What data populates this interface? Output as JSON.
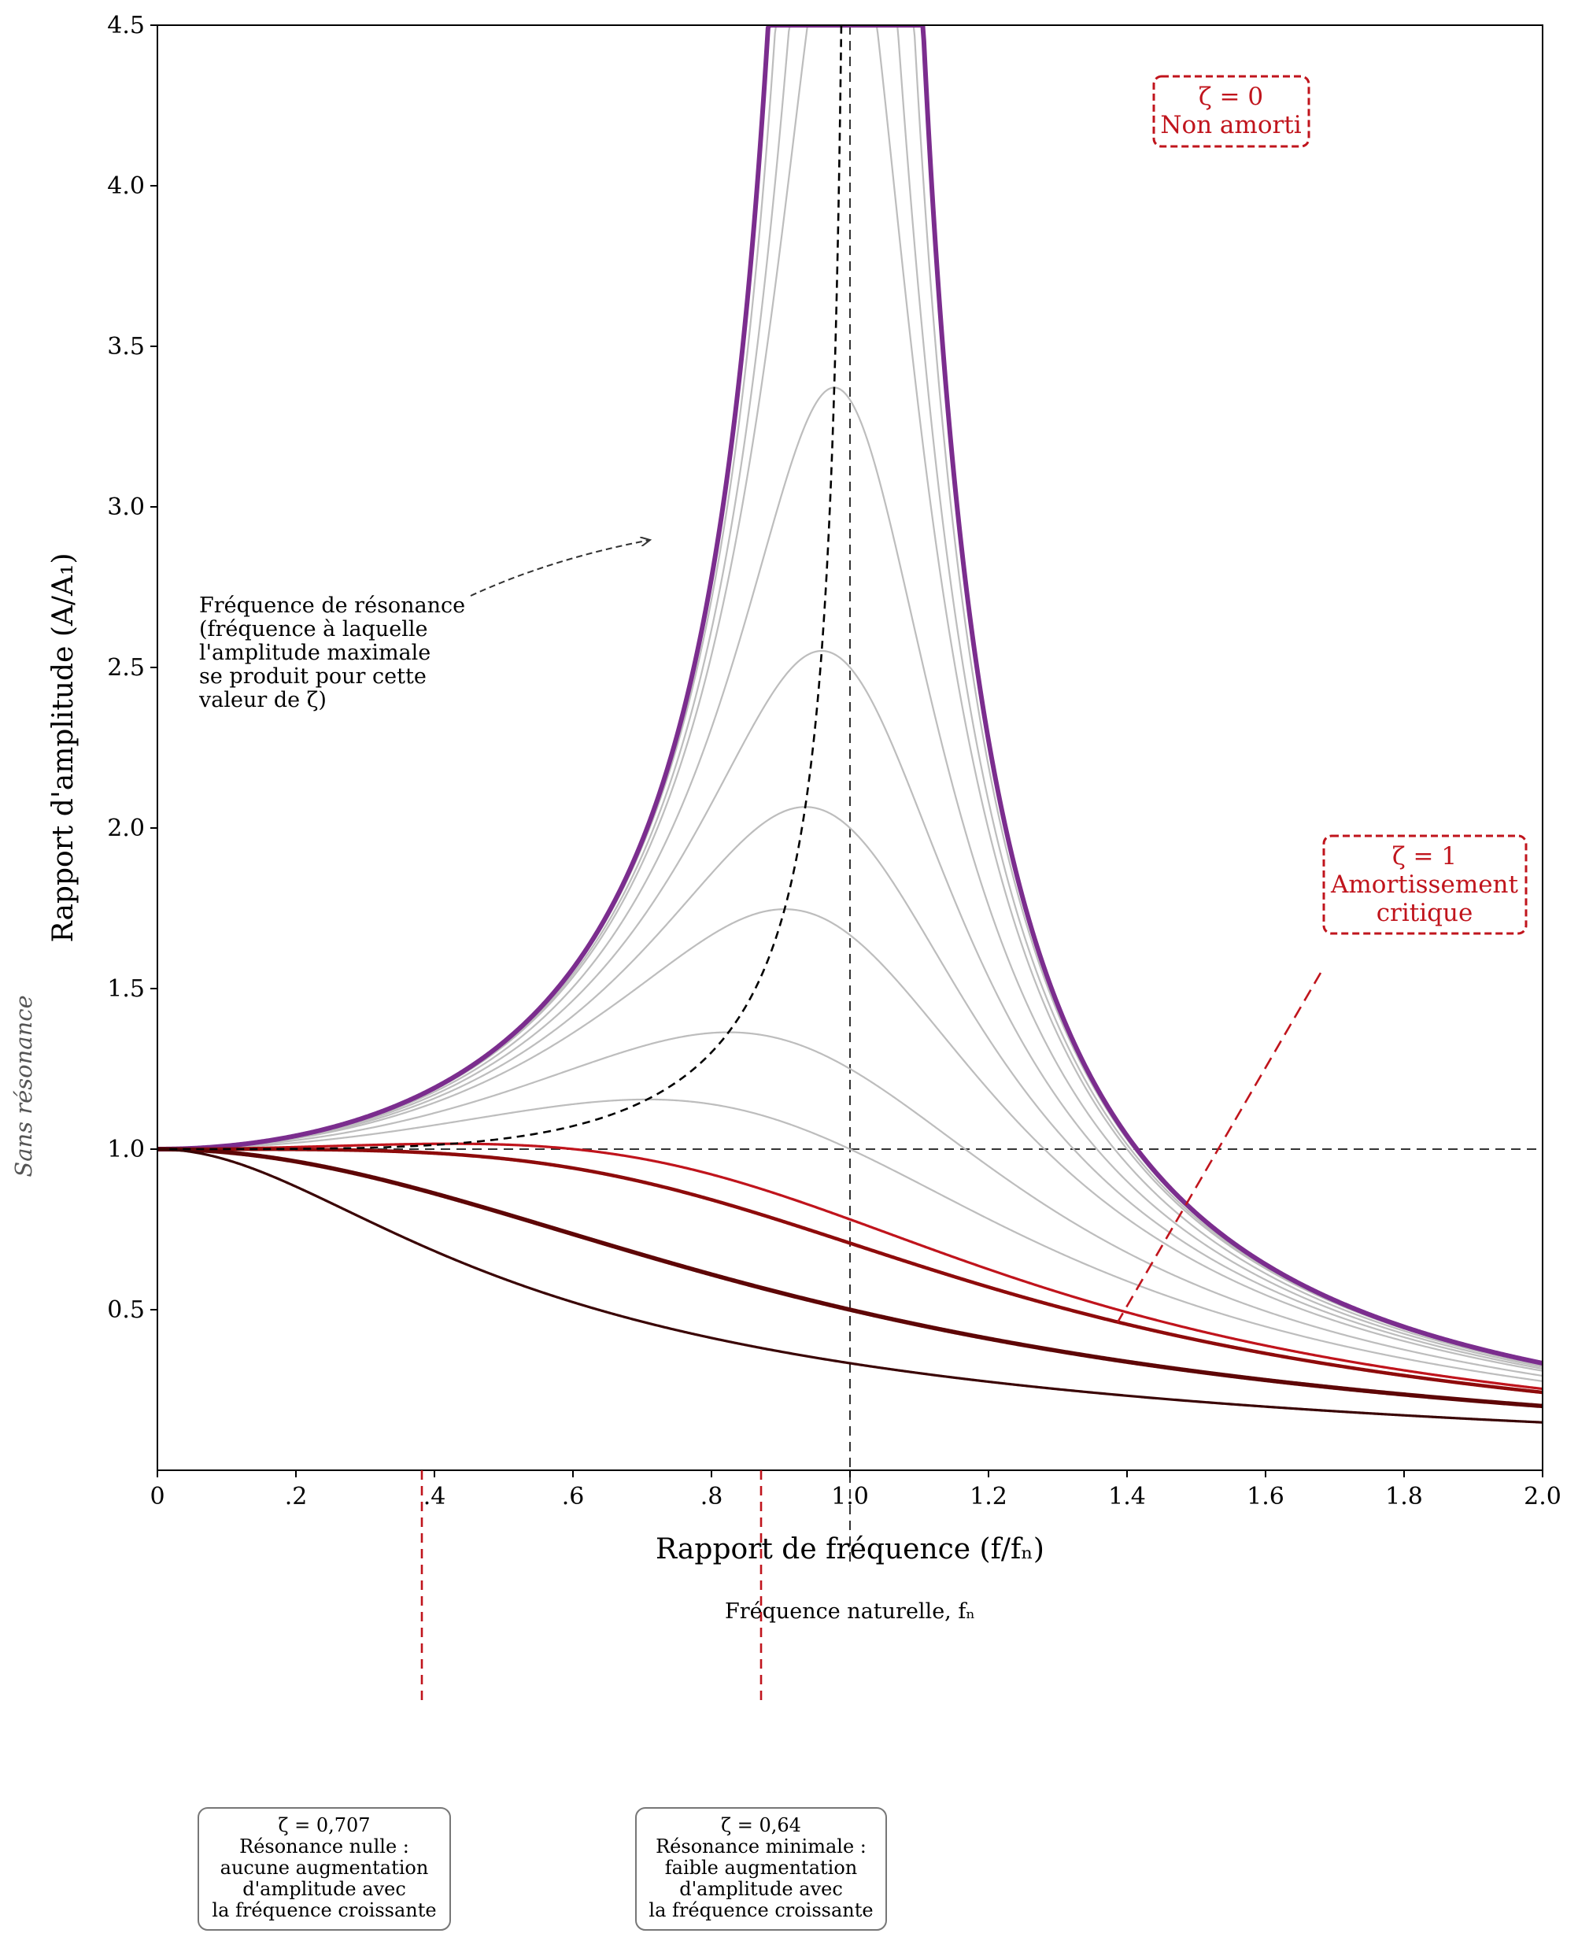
{
  "chart_data": {
    "type": "line",
    "title": "",
    "xlabel": "Rapport de fréquence (f/fₙ)",
    "ylabel": "Rapport d'amplitude (A/A₁)",
    "xlim": [
      0,
      2.0
    ],
    "ylim": [
      0,
      4.5
    ],
    "x_ticks": [
      {
        "value": 0,
        "label": "0"
      },
      {
        "value": 0.2,
        "label": ".2"
      },
      {
        "value": 0.4,
        "label": ".4"
      },
      {
        "value": 0.6,
        "label": ".6"
      },
      {
        "value": 0.8,
        "label": ".8"
      },
      {
        "value": 1.0,
        "label": "1.0"
      },
      {
        "value": 1.2,
        "label": "1.2"
      },
      {
        "value": 1.4,
        "label": "1.4"
      },
      {
        "value": 1.6,
        "label": "1.6"
      },
      {
        "value": 1.8,
        "label": "1.8"
      },
      {
        "value": 2.0,
        "label": "2.0"
      }
    ],
    "y_ticks": [
      {
        "value": 0.5,
        "label": "0.5"
      },
      {
        "value": 1.0,
        "label": "1.0"
      },
      {
        "value": 1.5,
        "label": "1.5"
      },
      {
        "value": 2.0,
        "label": "2.0"
      },
      {
        "value": 2.5,
        "label": "2.5"
      },
      {
        "value": 3.0,
        "label": "3.0"
      },
      {
        "value": 3.5,
        "label": "3.5"
      },
      {
        "value": 4.0,
        "label": "4.0"
      },
      {
        "value": 4.5,
        "label": "4.5"
      }
    ],
    "model": "A/A1 = 1 / sqrt((1 - r^2)^2 + (2 * zeta * r)^2), clipped at 4.5",
    "series": [
      {
        "name": "ζ = 0",
        "zeta": 0.0,
        "color": "#7b2d8e",
        "width": 6
      },
      {
        "name": "ζ ≈ 0.05",
        "zeta": 0.05,
        "color": "#bdbdbd",
        "width": 2.2
      },
      {
        "name": "ζ ≈ 0.08",
        "zeta": 0.08,
        "color": "#bdbdbd",
        "width": 2.2
      },
      {
        "name": "ζ ≈ 0.10",
        "zeta": 0.1,
        "color": "#bdbdbd",
        "width": 2.2
      },
      {
        "name": "ζ ≈ 0.15",
        "zeta": 0.15,
        "color": "#bdbdbd",
        "width": 2.2
      },
      {
        "name": "ζ ≈ 0.20",
        "zeta": 0.2,
        "color": "#bdbdbd",
        "width": 2.2
      },
      {
        "name": "ζ ≈ 0.25",
        "zeta": 0.25,
        "color": "#bdbdbd",
        "width": 2.2
      },
      {
        "name": "ζ ≈ 0.30",
        "zeta": 0.3,
        "color": "#bdbdbd",
        "width": 2.2
      },
      {
        "name": "ζ ≈ 0.40",
        "zeta": 0.4,
        "color": "#bdbdbd",
        "width": 2.2
      },
      {
        "name": "ζ ≈ 0.50",
        "zeta": 0.5,
        "color": "#bdbdbd",
        "width": 2.2
      },
      {
        "name": "ζ = 0,64",
        "zeta": 0.64,
        "color": "#c0141c",
        "width": 3.2
      },
      {
        "name": "ζ = 0,707",
        "zeta": 0.707,
        "color": "#8e0b0b",
        "width": 4.5
      },
      {
        "name": "ζ = 1",
        "zeta": 1.0,
        "color": "#5e0606",
        "width": 5.5
      },
      {
        "name": "ζ ≈ 1.5",
        "zeta": 1.5,
        "color": "#3a0404",
        "width": 3.2
      }
    ],
    "reference_lines": [
      {
        "orientation": "horizontal",
        "value": 1.0,
        "style": "dashed"
      },
      {
        "orientation": "vertical",
        "value": 1.0,
        "style": "dashed"
      }
    ],
    "resonance_locus": {
      "style": "dashed",
      "color": "#000000",
      "zeta_range": [
        0,
        0.707
      ]
    },
    "annotations": {
      "resonance_note": [
        "Fréquence de résonance",
        "(fréquence à laquelle",
        "l'amplitude maximale",
        "se produit pour cette",
        "valeur de ζ)"
      ],
      "undamped_box": [
        "ζ = 0",
        "Non amorti"
      ],
      "critical_box": [
        "ζ = 1",
        "Amortissement",
        "critique"
      ],
      "natural_frequency": "Fréquence naturelle, fₙ",
      "no_resonance_box": [
        "ζ = 0,707",
        "Résonance nulle :",
        "aucune augmentation",
        "d'amplitude avec",
        "la fréquence croissante"
      ],
      "min_resonance_box": [
        "ζ = 0,64",
        "Résonance minimale :",
        "faible augmentation",
        "d'amplitude avec",
        "la fréquence croissante"
      ],
      "side_label": "Sans résonance"
    }
  }
}
